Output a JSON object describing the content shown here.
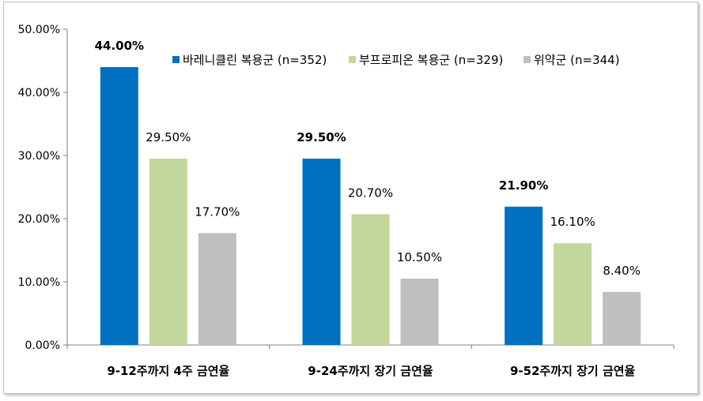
{
  "chart_data": {
    "type": "bar",
    "title": "",
    "xlabel": "",
    "ylabel": "",
    "ylim": [
      0,
      50
    ],
    "yticks": [
      "0.00%",
      "10.00%",
      "20.00%",
      "30.00%",
      "40.00%",
      "50.00%"
    ],
    "categories": [
      "9-12주까지 4주 금연율",
      "9-24주까지 장기 금연율",
      "9-52주까지 장기 금연율"
    ],
    "legend_position": "top-right",
    "grid": false,
    "series": [
      {
        "name": "바레니클린 복용군 (n=352)",
        "color": "#0070c0",
        "values": [
          44.0,
          29.5,
          21.9
        ],
        "labels": [
          "44.00%",
          "29.50%",
          "21.90%"
        ],
        "label_bold": true
      },
      {
        "name": "부프로피온 복용군 (n=329)",
        "color": "#c3d69b",
        "values": [
          29.5,
          20.7,
          16.1
        ],
        "labels": [
          "29.50%",
          "20.70%",
          "16.10%"
        ],
        "label_bold": false
      },
      {
        "name": "위약군 (n=344)",
        "color": "#bfbfbf",
        "values": [
          17.7,
          10.5,
          8.4
        ],
        "labels": [
          "17.70%",
          "10.50%",
          "8.40%"
        ],
        "label_bold": false
      }
    ]
  }
}
